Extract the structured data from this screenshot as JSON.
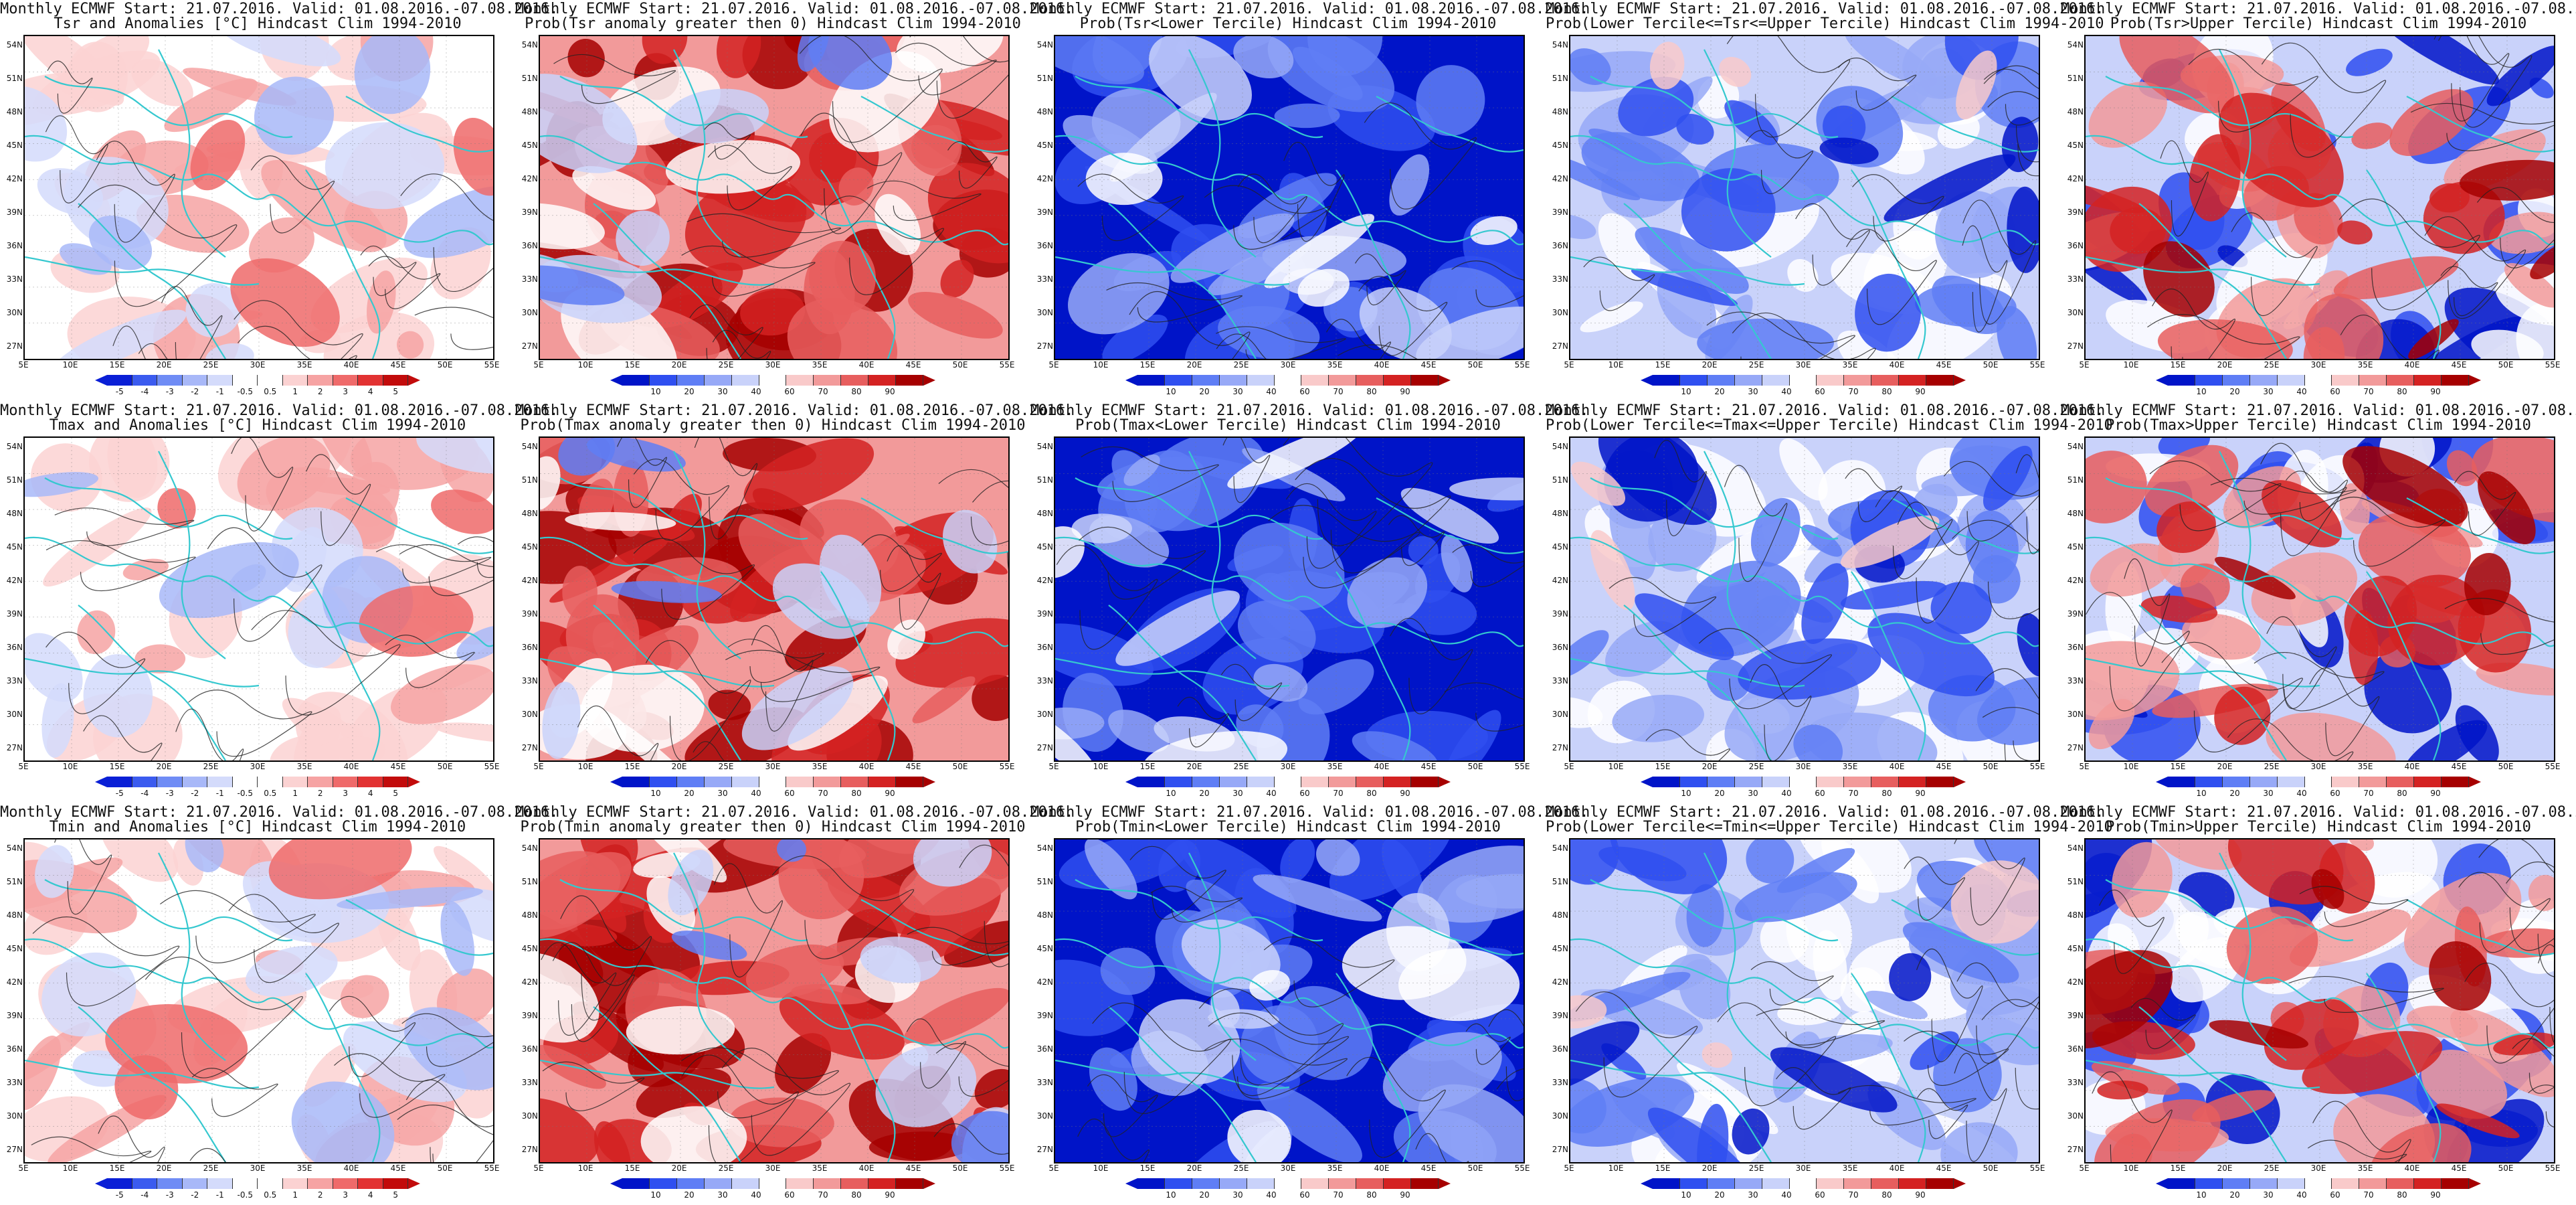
{
  "common": {
    "header": "Monthly ECMWF Start: 21.07.2016. Valid: 01.08.2016.-07.08.2016.",
    "lat_labels": [
      "54N",
      "51N",
      "48N",
      "45N",
      "42N",
      "39N",
      "36N",
      "33N",
      "30N",
      "27N"
    ],
    "lon_labels": [
      "5E",
      "10E",
      "15E",
      "20E",
      "25E",
      "30E",
      "35E",
      "40E",
      "45E",
      "50E",
      "55E"
    ]
  },
  "colors": {
    "anom_scale": [
      "#0a1fd6",
      "#3b5bef",
      "#6f8cf5",
      "#a8b8f8",
      "#d4dbfb",
      "#ffffff",
      "#ffffff",
      "#fbd2d2",
      "#f6a3a3",
      "#ef6a6a",
      "#e23232",
      "#c20b0b"
    ],
    "prob_scale": [
      "#0014c8",
      "#2f4ff0",
      "#5f7ef5",
      "#97a9f7",
      "#c9d2fa",
      "#ffffff",
      "#f9caca",
      "#f29a9a",
      "#e75e5e",
      "#d42222",
      "#a60000"
    ],
    "border_cyan": "#35c8cf",
    "contour_dark": "#222222",
    "frame": "#000000"
  },
  "anom_ticks": [
    "-5",
    "-4",
    "-3",
    "-2",
    "-1",
    "-0.5",
    "0.5",
    "1",
    "2",
    "3",
    "4",
    "5"
  ],
  "prob_ticks": [
    "10",
    "20",
    "30",
    "40",
    "60",
    "70",
    "80",
    "90"
  ],
  "panels": [
    {
      "title": "Tsr and Anomalies [°C] Hindcast Clim 1994-2010",
      "kind": "anom",
      "pattern": "warm-light"
    },
    {
      "title": "Prob(Tsr anomaly greater then 0) Hindcast Clim 1994-2010",
      "kind": "prob",
      "pattern": "strong-red"
    },
    {
      "title": "Prob(Tsr<Lower Tercile) Hindcast Clim 1994-2010",
      "kind": "prob",
      "pattern": "deep-blue"
    },
    {
      "title": "Prob(Lower Tercile<=Tsr<=Upper Tercile) Hindcast Clim 1994-2010",
      "kind": "prob",
      "pattern": "mixed-blue"
    },
    {
      "title": "Prob(Tsr>Upper Tercile) Hindcast Clim 1994-2010",
      "kind": "prob",
      "pattern": "red-blue"
    },
    {
      "title": "Tmax and Anomalies [°C] Hindcast Clim 1994-2010",
      "kind": "anom",
      "pattern": "warm-light"
    },
    {
      "title": "Prob(Tmax anomaly greater then 0) Hindcast Clim 1994-2010",
      "kind": "prob",
      "pattern": "strong-red"
    },
    {
      "title": "Prob(Tmax<Lower Tercile) Hindcast Clim 1994-2010",
      "kind": "prob",
      "pattern": "deep-blue"
    },
    {
      "title": "Prob(Lower Tercile<=Tmax<=Upper Tercile) Hindcast Clim 1994-2010",
      "kind": "prob",
      "pattern": "mixed-blue"
    },
    {
      "title": "Prob(Tmax>Upper Tercile) Hindcast Clim 1994-2010",
      "kind": "prob",
      "pattern": "red-blue"
    },
    {
      "title": "Tmin and Anomalies [°C] Hindcast Clim 1994-2010",
      "kind": "anom",
      "pattern": "warm-light"
    },
    {
      "title": "Prob(Tmin anomaly greater then 0) Hindcast Clim 1994-2010",
      "kind": "prob",
      "pattern": "strong-red"
    },
    {
      "title": "Prob(Tmin<Lower Tercile) Hindcast Clim 1994-2010",
      "kind": "prob",
      "pattern": "deep-blue"
    },
    {
      "title": "Prob(Lower Tercile<=Tmin<=Upper Tercile) Hindcast Clim 1994-2010",
      "kind": "prob",
      "pattern": "mixed-blue"
    },
    {
      "title": "Prob(Tmin>Upper Tercile) Hindcast Clim 1994-2010",
      "kind": "prob",
      "pattern": "red-blue"
    }
  ]
}
